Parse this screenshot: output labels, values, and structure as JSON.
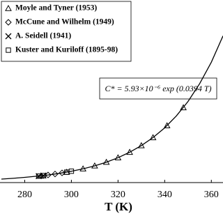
{
  "chart_data": {
    "type": "scatter",
    "xlabel": "T (K)",
    "annotation": "C* = 5.93×10⁻⁶ exp (0.0394 T)",
    "xlim": [
      270,
      365
    ],
    "xticks": [
      280,
      300,
      320,
      340,
      360
    ],
    "ylim": [
      0,
      11
    ],
    "legend": "upper left",
    "series": [
      {
        "name": "Moyle and Tyner (1953)",
        "color": "#000000",
        "marker": "triangle",
        "x": [
          287,
          298,
          305,
          310,
          315,
          320,
          325,
          330,
          335,
          341,
          348
        ],
        "values": [
          0.47,
          0.74,
          0.98,
          1.19,
          1.45,
          1.77,
          2.16,
          2.63,
          3.2,
          4.05,
          5.33
        ]
      },
      {
        "name": "McCune and Wilhelm (1949)",
        "color": "#000000",
        "marker": "diamond",
        "x": [
          290,
          293,
          296
        ],
        "values": [
          0.54,
          0.61,
          0.69
        ]
      },
      {
        "name": "A. Seidell (1941)",
        "color": "#000000",
        "marker": "cross",
        "x": [
          286,
          288
        ],
        "values": [
          0.46,
          0.5
        ]
      },
      {
        "name": "Kuster and Kuriloff (1895-98)",
        "color": "#000000",
        "marker": "square",
        "x": [
          286,
          288,
          298,
          300
        ],
        "values": [
          0.46,
          0.5,
          0.74,
          0.81
        ]
      }
    ],
    "fit_curve": {
      "color": "#000000",
      "x": [
        270,
        275,
        280,
        285,
        290,
        295,
        300,
        305,
        310,
        315,
        320,
        325,
        330,
        335,
        340,
        345,
        350,
        355,
        360,
        365
      ],
      "values": [
        0.247,
        0.3,
        0.37,
        0.45,
        0.54,
        0.66,
        0.81,
        0.98,
        1.19,
        1.45,
        1.77,
        2.16,
        2.63,
        3.2,
        3.89,
        4.74,
        5.77,
        7.03,
        8.56,
        10.43
      ]
    }
  }
}
